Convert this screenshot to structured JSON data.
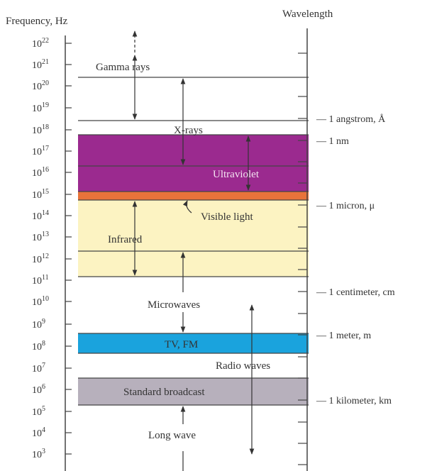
{
  "left_header": "Frequency, Hz",
  "right_header": "Wavelength",
  "freq_ticks": [
    {
      "base": "10",
      "exp": "22"
    },
    {
      "base": "10",
      "exp": "21"
    },
    {
      "base": "10",
      "exp": "20"
    },
    {
      "base": "10",
      "exp": "19"
    },
    {
      "base": "10",
      "exp": "18"
    },
    {
      "base": "10",
      "exp": "17"
    },
    {
      "base": "10",
      "exp": "16"
    },
    {
      "base": "10",
      "exp": "15"
    },
    {
      "base": "10",
      "exp": "14"
    },
    {
      "base": "10",
      "exp": "13"
    },
    {
      "base": "10",
      "exp": "12"
    },
    {
      "base": "10",
      "exp": "11"
    },
    {
      "base": "10",
      "exp": "10"
    },
    {
      "base": "10",
      "exp": "9"
    },
    {
      "base": "10",
      "exp": "8"
    },
    {
      "base": "10",
      "exp": "7"
    },
    {
      "base": "10",
      "exp": "6"
    },
    {
      "base": "10",
      "exp": "5"
    },
    {
      "base": "10",
      "exp": "4"
    },
    {
      "base": "10",
      "exp": "3"
    }
  ],
  "bands": [
    {
      "name": "gamma-rays",
      "label": "Gamma rays"
    },
    {
      "name": "x-rays",
      "label": "X-rays"
    },
    {
      "name": "ultraviolet",
      "label": "Ultraviolet",
      "color": "#9b2a8f"
    },
    {
      "name": "visible-light",
      "label": "Visible light",
      "color": "#e8733a"
    },
    {
      "name": "infrared",
      "label": "Infrared",
      "color": "#fcf3c2"
    },
    {
      "name": "microwaves",
      "label": "Microwaves"
    },
    {
      "name": "tv-fm",
      "label": "TV, FM",
      "color": "#1aa3dd"
    },
    {
      "name": "radio-waves",
      "label": "Radio waves"
    },
    {
      "name": "standard-broadcast",
      "label": "Standard broadcast",
      "color": "#b7b0bc"
    },
    {
      "name": "long-wave",
      "label": "Long wave"
    }
  ],
  "wavelength_labels": [
    "1 angstrom, Å",
    "1 nm",
    "1 micron, μ",
    "1 centimeter, cm",
    "1 meter, m",
    "1 kilometer, km"
  ]
}
